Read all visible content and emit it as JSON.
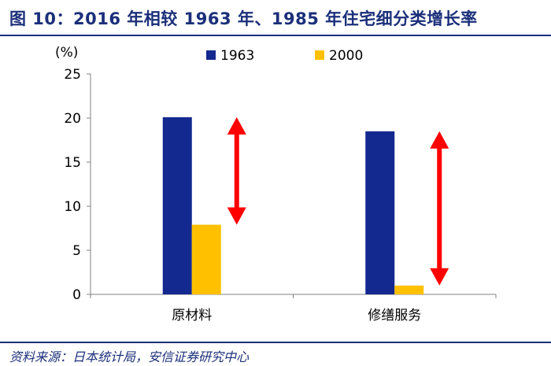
{
  "title": "图 10：2016 年相较 1963 年、1985 年住宅细分类增长率",
  "source": "资料来源：日本统计局，安信证券研究中心",
  "colors": {
    "title": "#1b2f7a",
    "series_1963": "#14298f",
    "series_2000": "#ffc000",
    "arrow": "#ff0000"
  },
  "chart_data": {
    "type": "bar",
    "unit_label": "(%)",
    "categories": [
      "原材料",
      "修缮服务"
    ],
    "series": [
      {
        "name": "1963",
        "values": [
          20.1,
          18.5
        ]
      },
      {
        "name": "2000",
        "values": [
          7.9,
          1.0
        ]
      }
    ],
    "ylim": [
      0,
      25
    ],
    "yticks": [
      0,
      5,
      10,
      15,
      20,
      25
    ],
    "legend_position": "top",
    "grid": false
  }
}
